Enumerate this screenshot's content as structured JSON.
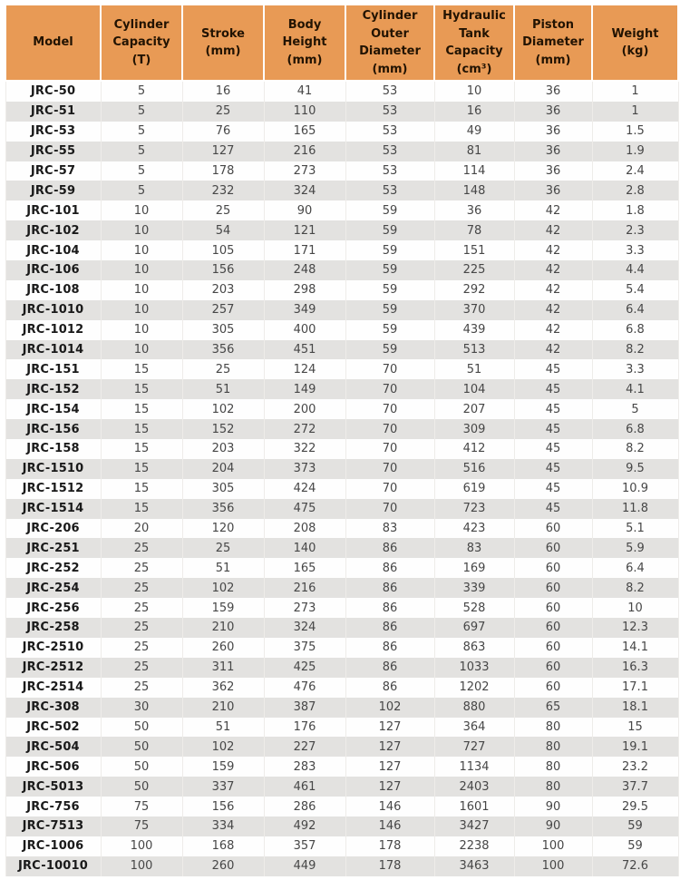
{
  "table": {
    "columns": [
      "Model",
      "Cylinder\nCapacity\n(T)",
      "Stroke\n(mm)",
      "Body\nHeight\n(mm)",
      "Cylinder\nOuter\nDiameter\n(mm)",
      "Hydraulic\nTank\nCapacity\n(cm³)",
      "Piston\nDiameter\n(mm)",
      "Weight\n(kg)"
    ],
    "column_units": [
      "",
      "T",
      "mm",
      "mm",
      "mm",
      "cm³",
      "mm",
      "kg"
    ],
    "rows": [
      [
        "JRC-50",
        5,
        16,
        41,
        53,
        10,
        36,
        1
      ],
      [
        "JRC-51",
        5,
        25,
        110,
        53,
        16,
        36,
        1
      ],
      [
        "JRC-53",
        5,
        76,
        165,
        53,
        49,
        36,
        1.5
      ],
      [
        "JRC-55",
        5,
        127,
        216,
        53,
        81,
        36,
        1.9
      ],
      [
        "JRC-57",
        5,
        178,
        273,
        53,
        114,
        36,
        2.4
      ],
      [
        "JRC-59",
        5,
        232,
        324,
        53,
        148,
        36,
        2.8
      ],
      [
        "JRC-101",
        10,
        25,
        90,
        59,
        36,
        42,
        1.8
      ],
      [
        "JRC-102",
        10,
        54,
        121,
        59,
        78,
        42,
        2.3
      ],
      [
        "JRC-104",
        10,
        105,
        171,
        59,
        151,
        42,
        3.3
      ],
      [
        "JRC-106",
        10,
        156,
        248,
        59,
        225,
        42,
        4.4
      ],
      [
        "JRC-108",
        10,
        203,
        298,
        59,
        292,
        42,
        5.4
      ],
      [
        "JRC-1010",
        10,
        257,
        349,
        59,
        370,
        42,
        6.4
      ],
      [
        "JRC-1012",
        10,
        305,
        400,
        59,
        439,
        42,
        6.8
      ],
      [
        "JRC-1014",
        10,
        356,
        451,
        59,
        513,
        42,
        8.2
      ],
      [
        "JRC-151",
        15,
        25,
        124,
        70,
        51,
        45,
        3.3
      ],
      [
        "JRC-152",
        15,
        51,
        149,
        70,
        104,
        45,
        4.1
      ],
      [
        "JRC-154",
        15,
        102,
        200,
        70,
        207,
        45,
        5
      ],
      [
        "JRC-156",
        15,
        152,
        272,
        70,
        309,
        45,
        6.8
      ],
      [
        "JRC-158",
        15,
        203,
        322,
        70,
        412,
        45,
        8.2
      ],
      [
        "JRC-1510",
        15,
        204,
        373,
        70,
        516,
        45,
        9.5
      ],
      [
        "JRC-1512",
        15,
        305,
        424,
        70,
        619,
        45,
        10.9
      ],
      [
        "JRC-1514",
        15,
        356,
        475,
        70,
        723,
        45,
        11.8
      ],
      [
        "JRC-206",
        20,
        120,
        208,
        83,
        423,
        60,
        5.1
      ],
      [
        "JRC-251",
        25,
        25,
        140,
        86,
        83,
        60,
        5.9
      ],
      [
        "JRC-252",
        25,
        51,
        165,
        86,
        169,
        60,
        6.4
      ],
      [
        "JRC-254",
        25,
        102,
        216,
        86,
        339,
        60,
        8.2
      ],
      [
        "JRC-256",
        25,
        159,
        273,
        86,
        528,
        60,
        10
      ],
      [
        "JRC-258",
        25,
        210,
        324,
        86,
        697,
        60,
        12.3
      ],
      [
        "JRC-2510",
        25,
        260,
        375,
        86,
        863,
        60,
        14.1
      ],
      [
        "JRC-2512",
        25,
        311,
        425,
        86,
        1033,
        60,
        16.3
      ],
      [
        "JRC-2514",
        25,
        362,
        476,
        86,
        1202,
        60,
        17.1
      ],
      [
        "JRC-308",
        30,
        210,
        387,
        102,
        880,
        65,
        18.1
      ],
      [
        "JRC-502",
        50,
        51,
        176,
        127,
        364,
        80,
        15
      ],
      [
        "JRC-504",
        50,
        102,
        227,
        127,
        727,
        80,
        19.1
      ],
      [
        "JRC-506",
        50,
        159,
        283,
        127,
        1134,
        80,
        23.2
      ],
      [
        "JRC-5013",
        50,
        337,
        461,
        127,
        2403,
        80,
        37.7
      ],
      [
        "JRC-756",
        75,
        156,
        286,
        146,
        1601,
        90,
        29.5
      ],
      [
        "JRC-7513",
        75,
        334,
        492,
        146,
        3427,
        90,
        59
      ],
      [
        "JRC-1006",
        100,
        168,
        357,
        178,
        2238,
        100,
        59
      ],
      [
        "JRC-10010",
        100,
        260,
        449,
        178,
        3463,
        100,
        72.6
      ]
    ]
  },
  "colors": {
    "header_bg": "#e89a55",
    "header_text": "#221302",
    "stripe_bg": "#e3e2e0",
    "row_bg": "#fefefe",
    "body_text": "#474747",
    "model_text": "#1a1a1a",
    "cell_border": "#eeece9",
    "header_border": "#ffffff"
  }
}
